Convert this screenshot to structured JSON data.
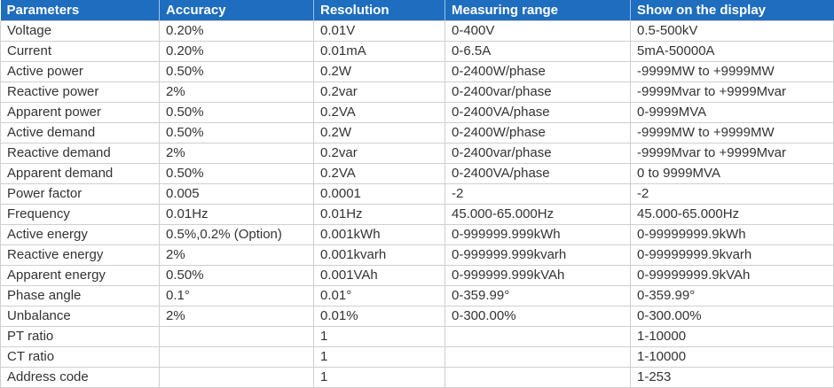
{
  "table": {
    "headers": [
      "Parameters",
      "Accuracy",
      "Resolution",
      "Measuring range",
      "Show on the display"
    ],
    "rows": [
      [
        "Voltage",
        "0.20%",
        "0.01V",
        "0-400V",
        "0.5-500kV"
      ],
      [
        "Current",
        "0.20%",
        "0.01mA",
        "0-6.5A",
        "5mA-50000A"
      ],
      [
        "Active power",
        "0.50%",
        "0.2W",
        "0-2400W/phase",
        "-9999MW to +9999MW"
      ],
      [
        "Reactive power",
        "2%",
        "0.2var",
        "0-2400var/phase",
        "-9999Mvar to +9999Mvar"
      ],
      [
        "Apparent power",
        "0.50%",
        "0.2VA",
        "0-2400VA/phase",
        "0-9999MVA"
      ],
      [
        "Active demand",
        "0.50%",
        "0.2W",
        "0-2400W/phase",
        "-9999MW to +9999MW"
      ],
      [
        "Reactive demand",
        "2%",
        "0.2var",
        "0-2400var/phase",
        "-9999Mvar to +9999Mvar"
      ],
      [
        "Apparent demand",
        "0.50%",
        "0.2VA",
        "0-2400VA/phase",
        "0 to 9999MVA"
      ],
      [
        "Power factor",
        "0.005",
        "0.0001",
        "-2",
        "-2"
      ],
      [
        "Frequency",
        "0.01Hz",
        "0.01Hz",
        "45.000-65.000Hz",
        "45.000-65.000Hz"
      ],
      [
        "Active energy",
        "0.5%,0.2% (Option)",
        "0.001kWh",
        "0-999999.999kWh",
        "0-99999999.9kWh"
      ],
      [
        "Reactive energy",
        "2%",
        "0.001kvarh",
        "0-999999.999kvarh",
        "0-99999999.9kvarh"
      ],
      [
        "Apparent energy",
        "0.50%",
        "0.001VAh",
        "0-999999.999kVAh",
        "0-99999999.9kVAh"
      ],
      [
        "Phase angle",
        "0.1°",
        "0.01°",
        "0-359.99°",
        "0-359.99°"
      ],
      [
        "Unbalance",
        "2%",
        "0.01%",
        "0-300.00%",
        "0-300.00%"
      ],
      [
        "PT ratio",
        "",
        "1",
        "",
        "1-10000"
      ],
      [
        "CT ratio",
        "",
        "1",
        "",
        "1-10000"
      ],
      [
        "Address code",
        "",
        "1",
        "",
        "1-253"
      ]
    ]
  },
  "colors": {
    "header_background": "#1e6dbe",
    "header_text": "#ffffff",
    "cell_text": "#333333",
    "grid_line": "#cfcfcf"
  }
}
